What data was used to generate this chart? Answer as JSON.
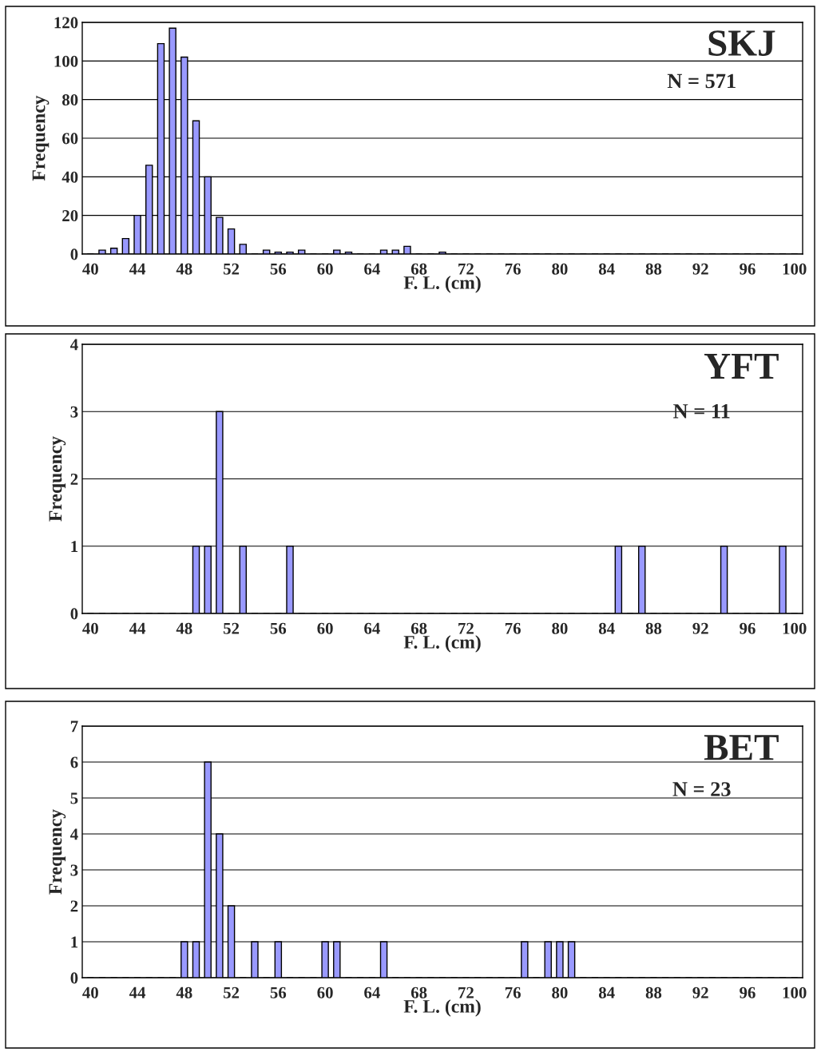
{
  "chart_data": [
    {
      "type": "bar",
      "title": "SKJ",
      "annotations": [
        "N = 571"
      ],
      "xlabel": "F. L. (cm)",
      "ylabel": "Frequency",
      "categories": [
        "40",
        null,
        null,
        null,
        "44",
        null,
        null,
        null,
        "48",
        null,
        null,
        null,
        "52",
        null,
        null,
        null,
        "56",
        null,
        null,
        null,
        "60",
        null,
        null,
        null,
        "64",
        null,
        null,
        null,
        "68",
        null,
        null,
        null,
        "72",
        null,
        null,
        null,
        "76",
        null,
        null,
        null,
        "80",
        null,
        null,
        null,
        "84",
        null,
        null,
        null,
        "88",
        null,
        null,
        null,
        "92",
        null,
        null,
        null,
        "96",
        null,
        null,
        null,
        "100"
      ],
      "values": [
        0,
        2,
        3,
        8,
        20,
        46,
        109,
        117,
        102,
        69,
        40,
        19,
        13,
        5,
        0,
        2,
        1,
        1,
        2,
        0,
        0,
        2,
        1,
        0,
        0,
        2,
        2,
        4,
        0,
        0,
        1,
        0,
        0,
        0,
        0,
        0,
        0,
        0,
        0,
        0,
        0,
        0,
        0,
        0,
        0,
        0,
        0,
        0,
        0,
        0,
        0,
        0,
        0,
        0,
        0,
        0,
        0,
        0,
        0,
        0,
        0
      ],
      "color": "#9999ff",
      "ylim": [
        0,
        120
      ],
      "yticks": [
        0,
        20,
        40,
        60,
        80,
        100,
        120
      ],
      "grid": "y"
    },
    {
      "type": "bar",
      "title": "YFT",
      "annotations": [
        "N = 11"
      ],
      "xlabel": "F. L. (cm)",
      "ylabel": "Frequency",
      "categories": [
        "40",
        null,
        null,
        null,
        "44",
        null,
        null,
        null,
        "48",
        null,
        null,
        null,
        "52",
        null,
        null,
        null,
        "56",
        null,
        null,
        null,
        "60",
        null,
        null,
        null,
        "64",
        null,
        null,
        null,
        "68",
        null,
        null,
        null,
        "72",
        null,
        null,
        null,
        "76",
        null,
        null,
        null,
        "80",
        null,
        null,
        null,
        "84",
        null,
        null,
        null,
        "88",
        null,
        null,
        null,
        "92",
        null,
        null,
        null,
        "96",
        null,
        null,
        null,
        "100"
      ],
      "values": [
        0,
        0,
        0,
        0,
        0,
        0,
        0,
        0,
        0,
        1,
        1,
        3,
        0,
        1,
        0,
        0,
        0,
        1,
        0,
        0,
        0,
        0,
        0,
        0,
        0,
        0,
        0,
        0,
        0,
        0,
        0,
        0,
        0,
        0,
        0,
        0,
        0,
        0,
        0,
        0,
        0,
        0,
        0,
        0,
        0,
        1,
        0,
        1,
        0,
        0,
        0,
        0,
        0,
        0,
        1,
        0,
        0,
        0,
        0,
        1,
        0
      ],
      "color": "#9999ff",
      "ylim": [
        0,
        4
      ],
      "yticks": [
        0,
        1,
        2,
        3,
        4
      ],
      "grid": "y"
    },
    {
      "type": "bar",
      "title": "BET",
      "annotations": [
        "N = 23"
      ],
      "xlabel": "F. L. (cm)",
      "ylabel": "Frequency",
      "categories": [
        "40",
        null,
        null,
        null,
        "44",
        null,
        null,
        null,
        "48",
        null,
        null,
        null,
        "52",
        null,
        null,
        null,
        "56",
        null,
        null,
        null,
        "60",
        null,
        null,
        null,
        "64",
        null,
        null,
        null,
        "68",
        null,
        null,
        null,
        "72",
        null,
        null,
        null,
        "76",
        null,
        null,
        null,
        "80",
        null,
        null,
        null,
        "84",
        null,
        null,
        null,
        "88",
        null,
        null,
        null,
        "92",
        null,
        null,
        null,
        "96",
        null,
        null,
        null,
        "100"
      ],
      "values": [
        0,
        0,
        0,
        0,
        0,
        0,
        0,
        0,
        1,
        1,
        6,
        4,
        2,
        0,
        1,
        0,
        1,
        0,
        0,
        0,
        1,
        1,
        0,
        0,
        0,
        1,
        0,
        0,
        0,
        0,
        0,
        0,
        0,
        0,
        0,
        0,
        0,
        1,
        0,
        1,
        1,
        1,
        0,
        0,
        0,
        0,
        0,
        0,
        0,
        0,
        0,
        0,
        0,
        0,
        0,
        0,
        0,
        0,
        0,
        0,
        0
      ],
      "color": "#9999ff",
      "ylim": [
        0,
        7
      ],
      "yticks": [
        0,
        1,
        2,
        3,
        4,
        5,
        6,
        7
      ],
      "grid": "y"
    }
  ]
}
